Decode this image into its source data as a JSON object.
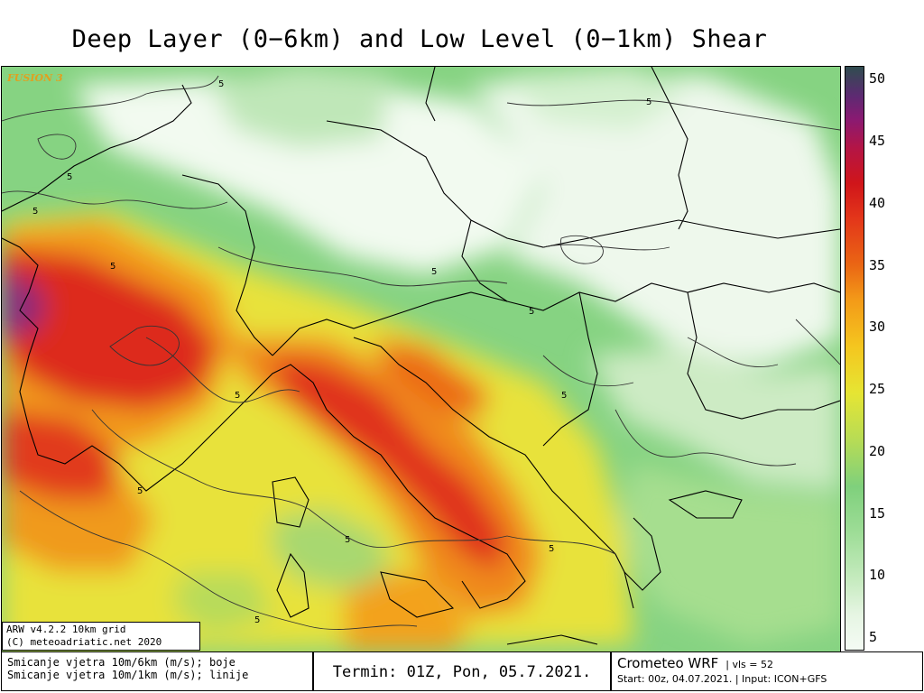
{
  "title": "Deep Layer (0−6km) and Low Level (0−1km) Shear",
  "watermark": "FUSION 3",
  "credit": {
    "line1": "ARW v4.2.2  10km grid",
    "line2": "(C) meteoadriatic.net 2020"
  },
  "legend": {
    "line1": "Smicanje vjetra 10m/6km (m/s); boje",
    "line2": "Smicanje vjetra 10m/1km (m/s); linije"
  },
  "termin": "Termin: 01Z, Pon, 05.7.2021.",
  "model": {
    "name": "Crometeo WRF",
    "vls": "| vls = 52",
    "start": "Start: 00z, 04.07.2021.  | Input: ICON+GFS"
  },
  "colorbar": {
    "unit": "m/s",
    "ticks": [
      "50",
      "45",
      "40",
      "35",
      "30",
      "25",
      "20",
      "15",
      "10",
      "5"
    ]
  },
  "contour_labels": [
    "5",
    "5",
    "5",
    "5",
    "5",
    "5",
    "5",
    "5",
    "5",
    "5",
    "5",
    "5",
    "5"
  ],
  "colors": {
    "low": "#f4fbf4",
    "green": "#8fd68a",
    "yellow": "#e6e533",
    "orange": "#f39a18",
    "red": "#d8231a",
    "purple": "#7a2a80",
    "fusion": "#e0a020"
  }
}
